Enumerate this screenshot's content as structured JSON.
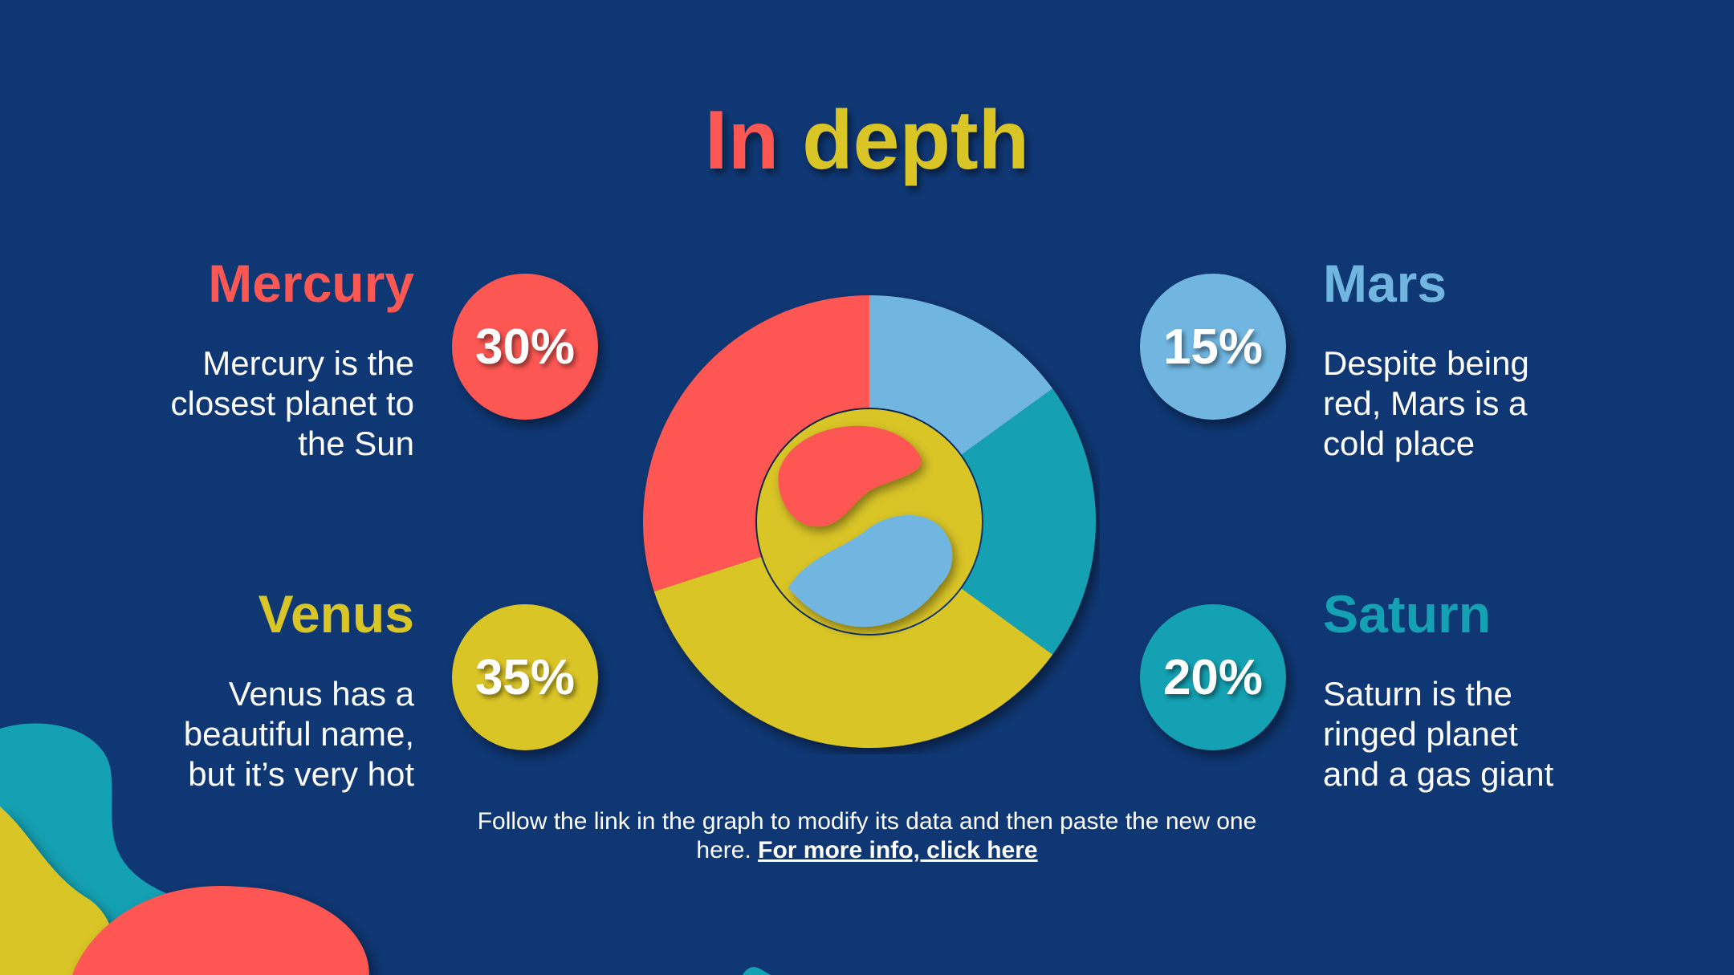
{
  "title": {
    "part1": "In",
    "part2": "depth"
  },
  "planets": {
    "mercury": {
      "name": "Mercury",
      "desc": "Mercury is the closest planet to the Sun",
      "value": "30%",
      "color": "#fd5753"
    },
    "venus": {
      "name": "Venus",
      "desc": "Venus has a beautiful name, but it’s very hot",
      "value": "35%",
      "color": "#dac527"
    },
    "mars": {
      "name": "Mars",
      "desc": "Despite being red, Mars is a cold place",
      "value": "15%",
      "color": "#70b6e1"
    },
    "saturn": {
      "name": "Saturn",
      "desc": "Saturn is the ringed planet and a gas giant",
      "value": "20%",
      "color": "#14a1b3"
    }
  },
  "footnote": {
    "text": "Follow the link in the graph to modify its data and then paste the new one here.",
    "link": "For more info, click here"
  },
  "chart_data": {
    "type": "pie",
    "categories": [
      "Mars",
      "Saturn",
      "Venus",
      "Mercury"
    ],
    "values": [
      15,
      20,
      35,
      30
    ],
    "colors": [
      "#70b6e1",
      "#14a1b3",
      "#dac527",
      "#fd5753"
    ]
  }
}
